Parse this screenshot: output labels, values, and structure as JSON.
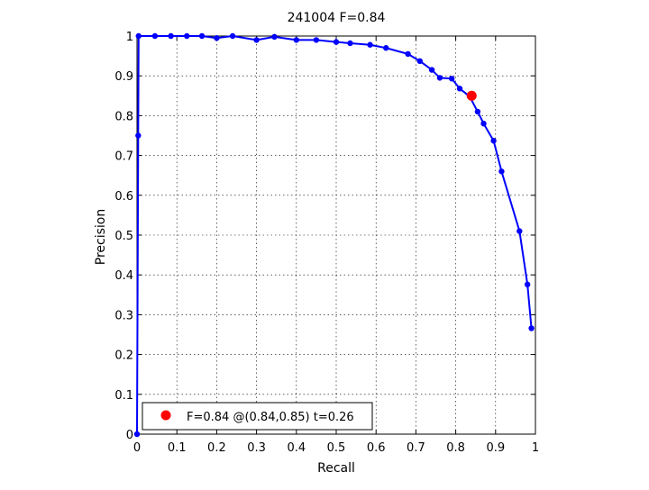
{
  "chart_data": {
    "type": "line",
    "title": "241004 F=0.84",
    "xlabel": "Recall",
    "ylabel": "Precision",
    "xlim": [
      0,
      1
    ],
    "ylim": [
      0,
      1
    ],
    "grid": true,
    "legend_placement": "bottom-left",
    "x_ticks": [
      0,
      0.1,
      0.2,
      0.3,
      0.4,
      0.5,
      0.6,
      0.7,
      0.8,
      0.9,
      1
    ],
    "y_ticks": [
      0,
      0.1,
      0.2,
      0.3,
      0.4,
      0.5,
      0.6,
      0.7,
      0.8,
      0.9,
      1
    ],
    "x_tick_labels": [
      "0",
      "0.1",
      "0.2",
      "0.3",
      "0.4",
      "0.5",
      "0.6",
      "0.7",
      "0.8",
      "0.9",
      "1"
    ],
    "y_tick_labels": [
      "0",
      "0.1",
      "0.2",
      "0.3",
      "0.4",
      "0.5",
      "0.6",
      "0.7",
      "0.8",
      "0.9",
      "1"
    ],
    "series": [
      {
        "color": "#0000ff",
        "x": [
          0,
          0.003,
          0.004,
          0.045,
          0.085,
          0.125,
          0.163,
          0.2,
          0.24,
          0.3,
          0.345,
          0.4,
          0.45,
          0.5,
          0.535,
          0.585,
          0.625,
          0.68,
          0.71,
          0.74,
          0.76,
          0.79,
          0.81,
          0.835,
          0.855,
          0.87,
          0.895,
          0.915,
          0.96,
          0.98,
          0.99
        ],
        "y": [
          0,
          0.75,
          1.0,
          1.0,
          1.0,
          1.0,
          1.0,
          0.995,
          1.0,
          0.99,
          0.998,
          0.99,
          0.99,
          0.985,
          0.982,
          0.978,
          0.97,
          0.955,
          0.937,
          0.915,
          0.895,
          0.893,
          0.868,
          0.848,
          0.81,
          0.78,
          0.737,
          0.66,
          0.51,
          0.376,
          0.266
        ]
      }
    ],
    "highlight": {
      "x": 0.84,
      "y": 0.85,
      "color": "#ff0000"
    },
    "legend_text": "F=0.84 @(0.84,0.85) t=0.26"
  }
}
